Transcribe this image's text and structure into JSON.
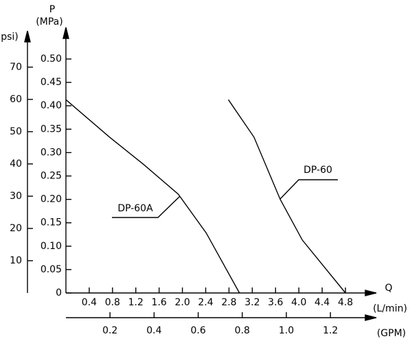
{
  "chart_data": {
    "type": "line",
    "y_label": "P",
    "y_unit": "(MPa)",
    "y2_label": "psi)",
    "x_label": "Q",
    "x_unit": "(L/min)",
    "x2_label": "(GPM)",
    "xlim": [
      0,
      5.2
    ],
    "xticks": [
      0.4,
      0.8,
      1.2,
      1.6,
      {
        "value": 2,
        "label": "2.0"
      },
      2.4,
      2.8,
      3.2,
      3.6,
      {
        "value": 4,
        "label": "4.0"
      },
      4.4,
      4.8
    ],
    "ylim": [
      0,
      0.55
    ],
    "yticks": [
      0,
      0.05,
      {
        "value": 0.1,
        "label": "0.10"
      },
      0.15,
      {
        "value": 0.2,
        "label": "0.20"
      },
      0.25,
      {
        "value": 0.3,
        "label": "0.30"
      },
      0.35,
      {
        "value": 0.4,
        "label": "0.40"
      },
      0.45,
      {
        "value": 0.5,
        "label": "0.50"
      }
    ],
    "y2lim": [
      0,
      79.77
    ],
    "y2ticks": [
      10,
      20,
      30,
      40,
      50,
      60,
      70
    ],
    "x2lim": [
      0,
      1.3738
    ],
    "x2ticks": [
      0.2,
      0.4,
      0.6,
      0.8,
      {
        "value": 1,
        "label": "1.0"
      },
      1.2
    ],
    "series": [
      {
        "name": "DP-60A",
        "color": "#000000",
        "x": [
          0,
          0.75,
          1.34,
          1.93,
          2.41,
          2.98
        ],
        "values": [
          0.413,
          0.333,
          0.274,
          0.211,
          0.128,
          0
        ]
      },
      {
        "name": "DP-60",
        "color": "#000000",
        "x": [
          2.79,
          3.23,
          3.68,
          4.06,
          4.8
        ],
        "values": [
          0.413,
          0.333,
          0.2,
          0.113,
          0
        ]
      }
    ]
  }
}
